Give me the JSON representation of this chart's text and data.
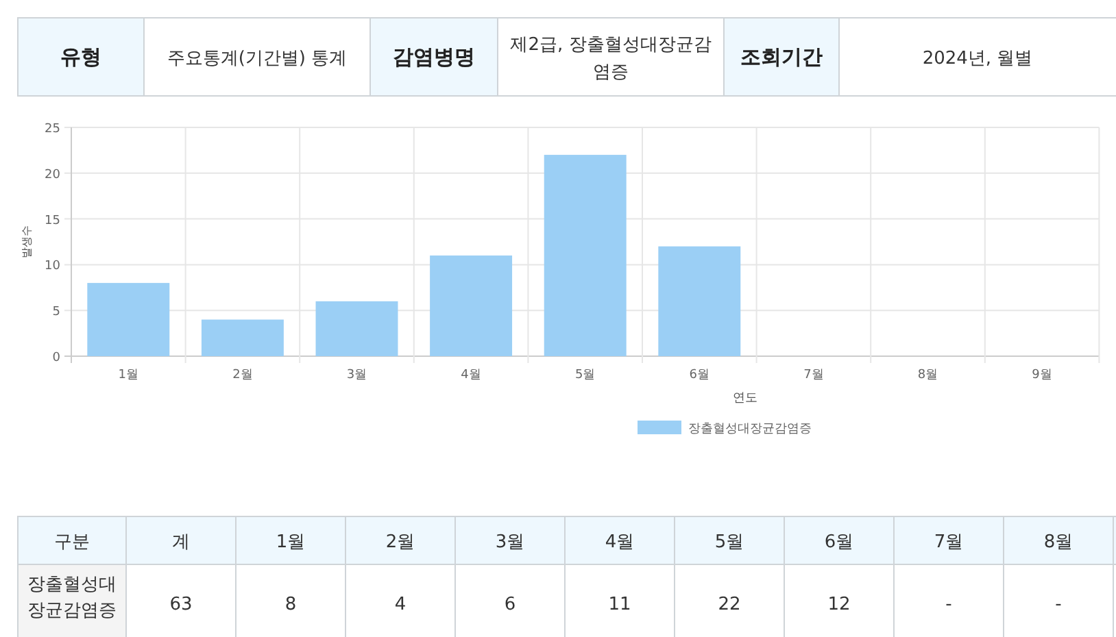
{
  "chart_data": {
    "type": "bar",
    "xlabel": "연도",
    "ylabel": "발생수",
    "categories": [
      "1월",
      "2월",
      "3월",
      "4월",
      "5월",
      "6월",
      "7월",
      "8월",
      "9월"
    ],
    "series": [
      {
        "name": "장출혈성대장균감염증",
        "color": "#9bcff5",
        "values": [
          8,
          4,
          6,
          11,
          22,
          12,
          null,
          null,
          null
        ]
      }
    ],
    "ylim": [
      0,
      25
    ],
    "yticks": [
      0,
      5,
      10,
      15,
      20,
      25
    ],
    "grid": true,
    "legend": "bottom",
    "annotations": [
      "유형",
      "주요통계(기간별) 통계",
      "감염병명",
      "제2급, 장출혈성대장균감염증",
      "조회기간",
      "2024년, 월별",
      "구분",
      "계",
      "63",
      "8",
      "4",
      "6",
      "11",
      "22",
      "12",
      "-",
      "-"
    ]
  }
}
